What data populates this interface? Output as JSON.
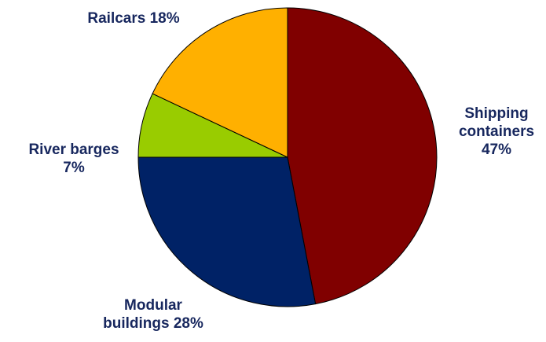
{
  "chart_data": {
    "type": "pie",
    "title": "",
    "start_angle_deg": 0,
    "direction": "clockwise",
    "slices": [
      {
        "label_lines": [
          "Shipping",
          "containers",
          "47%"
        ],
        "value": 47,
        "color": "#800000"
      },
      {
        "label_lines": [
          "Modular",
          "buildings 28%"
        ],
        "value": 28,
        "color": "#002266"
      },
      {
        "label_lines": [
          "River barges",
          "7%"
        ],
        "value": 7,
        "color": "#99cc00"
      },
      {
        "label_lines": [
          "Railcars 18%"
        ],
        "value": 18,
        "color": "#ffb000"
      }
    ]
  }
}
